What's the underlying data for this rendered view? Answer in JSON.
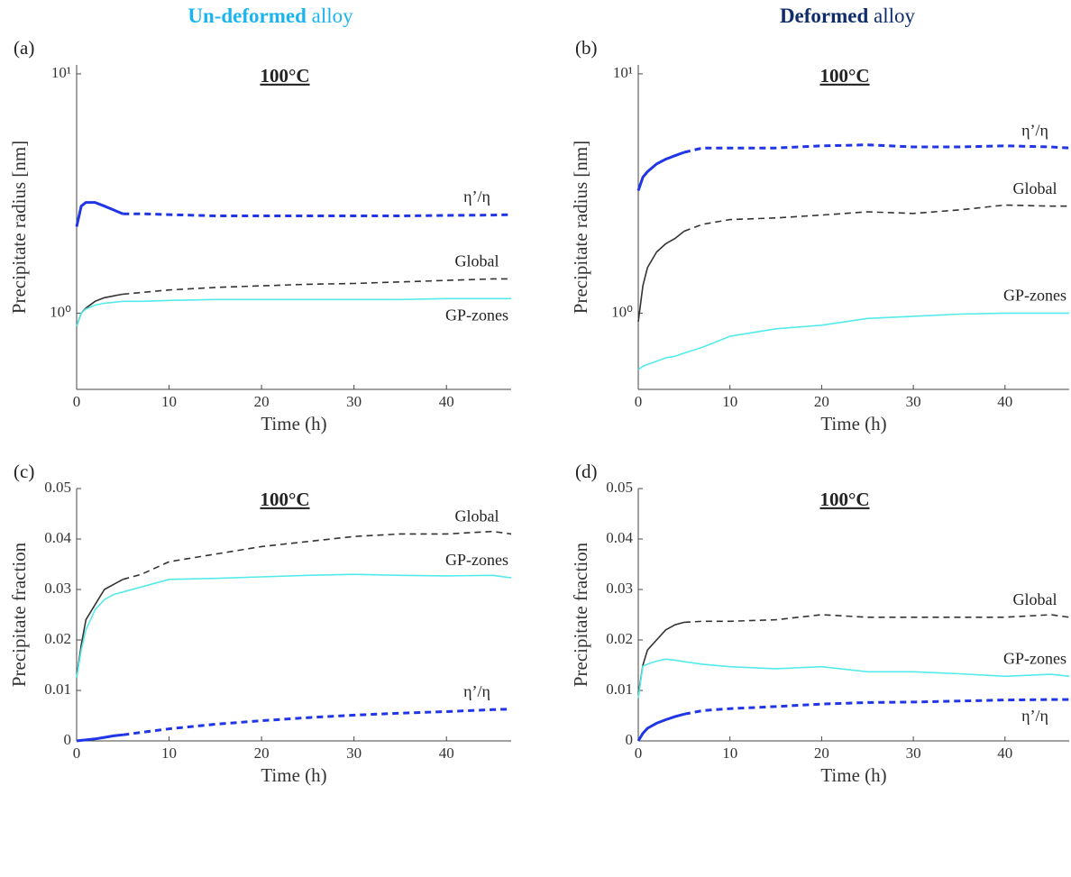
{
  "headers": [
    {
      "bold": "Un-deformed",
      "text": "alloy",
      "color": "#1ab4ef"
    },
    {
      "bold": "Deformed",
      "text": "alloy",
      "color": "#0f2d6b"
    }
  ],
  "chart_data": [
    {
      "type": "line",
      "panel_label": "(a)",
      "title": "100°C",
      "xlabel": "Time (h)",
      "ylabel": "Precipitate radius [nm]",
      "log_y": true,
      "xlim": [
        0,
        47
      ],
      "xticks": [
        0,
        10,
        20,
        30,
        40
      ],
      "ylim": [
        0.48,
        10.9
      ],
      "yticks": [
        {
          "value": 1,
          "label": "10⁰"
        },
        {
          "value": 10,
          "label": "10¹"
        }
      ],
      "x": [
        0,
        0.5,
        1,
        2,
        3,
        4,
        5,
        7,
        10,
        15,
        20,
        25,
        30,
        35,
        40,
        45,
        47
      ],
      "series": [
        {
          "name": "η’/η",
          "color": "#1f35e6",
          "width": 3,
          "dashed_from_x": 5,
          "label_pos": "above",
          "values": [
            2.3,
            2.8,
            2.9,
            2.9,
            2.8,
            2.7,
            2.6,
            2.6,
            2.58,
            2.55,
            2.55,
            2.55,
            2.55,
            2.55,
            2.56,
            2.57,
            2.58
          ]
        },
        {
          "name": "Global",
          "color": "#333333",
          "width": 1.6,
          "dashed_from_x": 5,
          "label_pos": "above",
          "values": [
            0.88,
            1.0,
            1.05,
            1.12,
            1.16,
            1.18,
            1.2,
            1.22,
            1.25,
            1.28,
            1.3,
            1.32,
            1.33,
            1.35,
            1.37,
            1.39,
            1.39
          ]
        },
        {
          "name": "GP-zones",
          "color": "#55eaea",
          "width": 1.6,
          "label_pos": "below",
          "values": [
            0.88,
            1.0,
            1.04,
            1.08,
            1.1,
            1.11,
            1.12,
            1.12,
            1.13,
            1.14,
            1.14,
            1.14,
            1.14,
            1.14,
            1.15,
            1.15,
            1.15
          ]
        }
      ]
    },
    {
      "type": "line",
      "panel_label": "(b)",
      "title": "100°C",
      "xlabel": "Time (h)",
      "ylabel": "Precipitate radius [nm]",
      "log_y": true,
      "xlim": [
        0,
        47
      ],
      "xticks": [
        0,
        10,
        20,
        30,
        40
      ],
      "ylim": [
        0.48,
        10.9
      ],
      "yticks": [
        {
          "value": 1,
          "label": "10⁰"
        },
        {
          "value": 10,
          "label": "10¹"
        }
      ],
      "x": [
        0,
        0.5,
        1,
        2,
        3,
        4,
        5,
        7,
        10,
        15,
        20,
        25,
        30,
        35,
        40,
        45,
        47
      ],
      "series": [
        {
          "name": "η’/η",
          "color": "#1f35e6",
          "width": 3,
          "dashed_from_x": 5,
          "label_pos": "above",
          "values": [
            3.25,
            3.7,
            3.9,
            4.2,
            4.4,
            4.55,
            4.7,
            4.9,
            4.9,
            4.9,
            5.0,
            5.05,
            4.95,
            4.95,
            5.0,
            4.95,
            4.9
          ]
        },
        {
          "name": "Global",
          "color": "#333333",
          "width": 1.6,
          "dashed_from_x": 5,
          "label_pos": "above",
          "values": [
            0.92,
            1.3,
            1.55,
            1.8,
            1.95,
            2.05,
            2.2,
            2.35,
            2.46,
            2.5,
            2.57,
            2.65,
            2.61,
            2.7,
            2.83,
            2.8,
            2.8
          ]
        },
        {
          "name": "GP-zones",
          "color": "#55eaea",
          "width": 1.6,
          "label_pos": "above",
          "values": [
            0.58,
            0.6,
            0.61,
            0.63,
            0.65,
            0.66,
            0.68,
            0.72,
            0.8,
            0.86,
            0.89,
            0.95,
            0.97,
            0.99,
            1.0,
            1.0,
            1.0
          ]
        }
      ]
    },
    {
      "type": "line",
      "panel_label": "(c)",
      "title": "100°C",
      "xlabel": "Time (h)",
      "ylabel": "Precipitate fraction",
      "log_y": false,
      "xlim": [
        0,
        47
      ],
      "xticks": [
        0,
        10,
        20,
        30,
        40
      ],
      "ylim": [
        0,
        0.05
      ],
      "yticks": [
        0,
        0.01,
        0.02,
        0.03,
        0.04,
        0.05
      ],
      "x": [
        0,
        0.5,
        1,
        2,
        3,
        4,
        5,
        7,
        10,
        15,
        20,
        25,
        30,
        35,
        40,
        45,
        47
      ],
      "series": [
        {
          "name": "Global",
          "color": "#333333",
          "width": 1.6,
          "dashed_from_x": 5,
          "label_pos": "above",
          "values": [
            0.0125,
            0.019,
            0.024,
            0.027,
            0.03,
            0.031,
            0.032,
            0.033,
            0.0355,
            0.037,
            0.0385,
            0.0395,
            0.0405,
            0.041,
            0.041,
            0.0415,
            0.041
          ]
        },
        {
          "name": "GP-zones",
          "color": "#55eaea",
          "width": 1.6,
          "label_pos": "above",
          "values": [
            0.0125,
            0.018,
            0.022,
            0.026,
            0.028,
            0.029,
            0.0295,
            0.0305,
            0.032,
            0.0322,
            0.0325,
            0.0328,
            0.033,
            0.0328,
            0.0327,
            0.0328,
            0.0323
          ]
        },
        {
          "name": "η’/η",
          "color": "#1f35e6",
          "width": 3,
          "dashed_from_x": 5,
          "label_pos": "above",
          "values": [
            0,
            0.0001,
            0.0002,
            0.0004,
            0.0007,
            0.001,
            0.0012,
            0.0017,
            0.0024,
            0.0033,
            0.004,
            0.0046,
            0.0051,
            0.0055,
            0.0058,
            0.0062,
            0.0063
          ]
        }
      ]
    },
    {
      "type": "line",
      "panel_label": "(d)",
      "title": "100°C",
      "xlabel": "Time (h)",
      "ylabel": "Precipitate fraction",
      "log_y": false,
      "xlim": [
        0,
        47
      ],
      "xticks": [
        0,
        10,
        20,
        30,
        40
      ],
      "ylim": [
        0,
        0.05
      ],
      "yticks": [
        0,
        0.01,
        0.02,
        0.03,
        0.04,
        0.05
      ],
      "x": [
        0,
        0.5,
        1,
        2,
        3,
        4,
        5,
        7,
        10,
        15,
        20,
        25,
        30,
        35,
        40,
        45,
        47
      ],
      "series": [
        {
          "name": "Global",
          "color": "#333333",
          "width": 1.6,
          "dashed_from_x": 5,
          "label_pos": "above",
          "values": [
            0.009,
            0.015,
            0.018,
            0.02,
            0.022,
            0.023,
            0.0235,
            0.0237,
            0.0237,
            0.024,
            0.025,
            0.0245,
            0.0245,
            0.0245,
            0.0245,
            0.025,
            0.0245
          ]
        },
        {
          "name": "GP-zones",
          "color": "#55eaea",
          "width": 1.6,
          "label_pos": "above",
          "values": [
            0.0085,
            0.0148,
            0.0152,
            0.0158,
            0.0162,
            0.016,
            0.0157,
            0.0152,
            0.0147,
            0.0143,
            0.0147,
            0.0137,
            0.0137,
            0.0133,
            0.0128,
            0.0132,
            0.0128
          ]
        },
        {
          "name": "η’/η",
          "color": "#1f35e6",
          "width": 3,
          "dashed_from_x": 5,
          "label_pos": "below",
          "values": [
            0,
            0.0015,
            0.0025,
            0.0035,
            0.0042,
            0.0048,
            0.0053,
            0.006,
            0.0064,
            0.0068,
            0.0073,
            0.0076,
            0.0077,
            0.0079,
            0.0081,
            0.0082,
            0.0082
          ]
        }
      ]
    }
  ]
}
